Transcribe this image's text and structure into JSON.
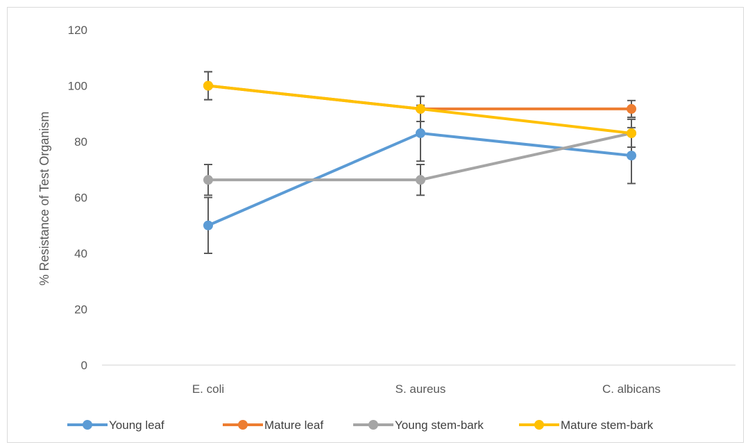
{
  "chart_data": {
    "type": "line",
    "title": "",
    "xlabel": "",
    "ylabel": "% Resistance  of Test Organism",
    "categories": [
      "E. coli",
      "S. aureus",
      "C. albicans"
    ],
    "ylim": [
      0,
      120
    ],
    "yticks": [
      0,
      20,
      40,
      60,
      80,
      100,
      120
    ],
    "grid": false,
    "legend_position": "bottom",
    "series": [
      {
        "name": "Young leaf",
        "color": "#5B9BD5",
        "values": [
          50,
          83,
          75
        ],
        "errors": [
          10,
          10,
          10
        ]
      },
      {
        "name": "Mature leaf",
        "color": "#ED7D31",
        "values": [
          100,
          91.7,
          91.7
        ],
        "errors": [
          5,
          4.5,
          3
        ]
      },
      {
        "name": "Young stem-bark",
        "color": "#A5A5A5",
        "values": [
          66.3,
          66.3,
          83
        ],
        "errors": [
          5.5,
          5.5,
          5
        ]
      },
      {
        "name": "Mature stem-bark",
        "color": "#FFC000",
        "values": [
          100,
          91.7,
          83
        ],
        "errors": [
          5,
          4.5,
          5
        ]
      }
    ]
  }
}
